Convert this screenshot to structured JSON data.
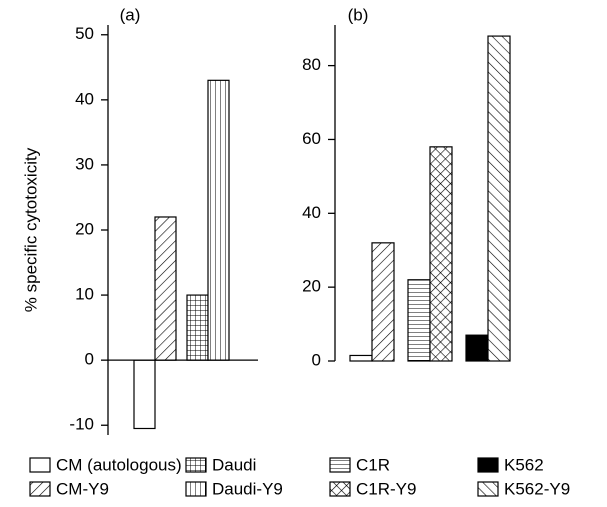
{
  "chart_data": [
    {
      "type": "bar",
      "title": "(a)",
      "ylabel": "% specific cytotoxicity",
      "categories": [
        "CM (autologous)",
        "CM-Y9",
        "Daudi",
        "Daudi-Y9"
      ],
      "values": [
        -10.5,
        22,
        10,
        43
      ],
      "patterns": [
        "white",
        "diagonal",
        "grid",
        "vertical"
      ],
      "ylim": [
        -11.5,
        51.5
      ],
      "yticks": [
        -10,
        0,
        10,
        20,
        30,
        40,
        50
      ]
    },
    {
      "type": "bar",
      "title": "(b)",
      "categories": [
        "CM (autologous)",
        "CM-Y9",
        "C1R",
        "C1R-Y9",
        "K562",
        "K562-Y9"
      ],
      "values": [
        1.5,
        32,
        22,
        58,
        7,
        88
      ],
      "patterns": [
        "white",
        "diagonal",
        "horizontal",
        "crosshatch",
        "black",
        "backdiagonal"
      ],
      "ylim": [
        0,
        91
      ],
      "yticks": [
        0,
        20,
        40,
        60,
        80
      ]
    }
  ]
}
